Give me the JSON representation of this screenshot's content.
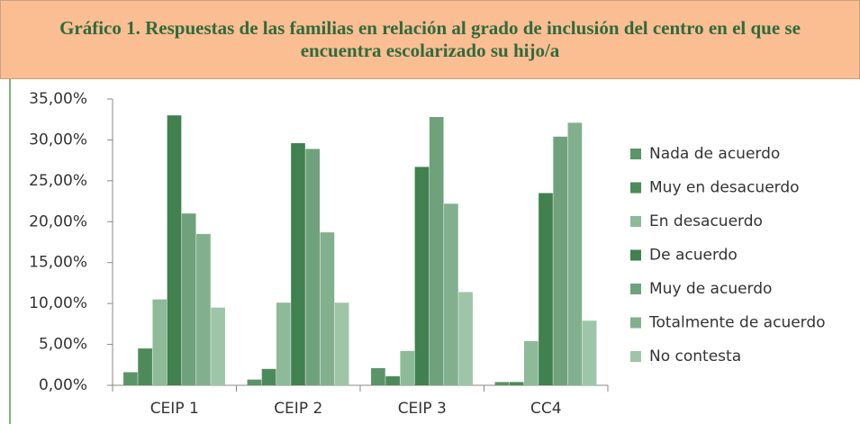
{
  "chart_data": {
    "type": "bar",
    "title": "Gráfico 1. Respuestas de las familias en relación al grado de inclusión del centro en el que se encuentra escolarizado su hijo/a",
    "categories": [
      "CEIP 1",
      "CEIP 2",
      "CEIP 3",
      "CC4"
    ],
    "series": [
      {
        "name": "Nada de acuerdo",
        "color": "#5b9468",
        "values": [
          1.6,
          0.7,
          2.1,
          0.4
        ]
      },
      {
        "name": "Muy en desacuerdo",
        "color": "#4d8a5b",
        "values": [
          4.5,
          2.0,
          1.1,
          0.4
        ]
      },
      {
        "name": "En desacuerdo",
        "color": "#8dba98",
        "values": [
          10.5,
          10.1,
          4.2,
          5.4
        ]
      },
      {
        "name": "De acuerdo",
        "color": "#41804f",
        "values": [
          33.0,
          29.6,
          26.7,
          23.5
        ]
      },
      {
        "name": "Muy de acuerdo",
        "color": "#6fa27c",
        "values": [
          21.0,
          28.9,
          32.8,
          30.4
        ]
      },
      {
        "name": "Totalmente de acuerdo",
        "color": "#82b08e",
        "values": [
          18.5,
          18.7,
          22.2,
          32.1
        ]
      },
      {
        "name": "No contesta",
        "color": "#9fc5a8",
        "values": [
          9.5,
          10.1,
          11.4,
          7.9
        ]
      }
    ],
    "ylim": [
      0,
      35
    ],
    "yticks": [
      {
        "value": 0,
        "label": "0,00%"
      },
      {
        "value": 5,
        "label": "5,00%"
      },
      {
        "value": 10,
        "label": "10,00%"
      },
      {
        "value": 15,
        "label": "15,00%"
      },
      {
        "value": 20,
        "label": "20,00%"
      },
      {
        "value": 25,
        "label": "25,00%"
      },
      {
        "value": 30,
        "label": "30,00%"
      },
      {
        "value": 35,
        "label": "35,00%"
      }
    ],
    "legend": "right"
  }
}
